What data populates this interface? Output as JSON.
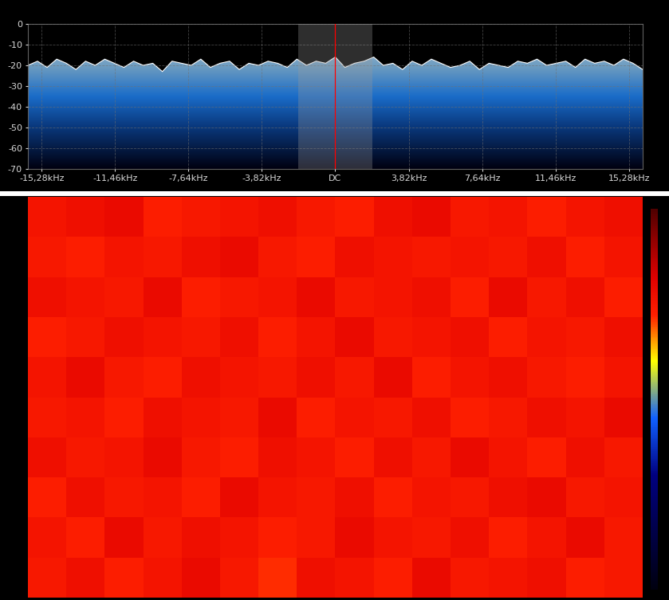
{
  "chart_data": [
    {
      "type": "line",
      "x": [
        -16,
        -15.5,
        -15,
        -14.5,
        -14,
        -13.5,
        -13,
        -12.5,
        -12,
        -11.5,
        -11,
        -10.5,
        -10,
        -9.5,
        -9,
        -8.5,
        -8,
        -7.5,
        -7,
        -6.5,
        -6,
        -5.5,
        -5,
        -4.5,
        -4,
        -3.5,
        -3,
        -2.5,
        -2,
        -1.5,
        -1,
        -0.5,
        0,
        0.5,
        1,
        1.5,
        2,
        2.5,
        3,
        3.5,
        4,
        4.5,
        5,
        5.5,
        6,
        6.5,
        7,
        7.5,
        8,
        8.5,
        9,
        9.5,
        10,
        10.5,
        11,
        11.5,
        12,
        12.5,
        13,
        13.5,
        14,
        14.5,
        15,
        15.5,
        16
      ],
      "series": [
        {
          "color": "#ffffff",
          "values": [
            -20,
            -18,
            -21,
            -17,
            -19,
            -22,
            -18,
            -20,
            -17,
            -19,
            -21,
            -18,
            -20,
            -19,
            -23,
            -18,
            -19,
            -20,
            -17,
            -21,
            -19,
            -18,
            -22,
            -19,
            -20,
            -18,
            -19,
            -21,
            -17,
            -20,
            -18,
            -19,
            -16,
            -21,
            -19,
            -18,
            -16,
            -20,
            -19,
            -22,
            -18,
            -20,
            -17,
            -19,
            -21,
            -20,
            -18,
            -22,
            -19,
            -20,
            -21,
            -18,
            -19,
            -17,
            -20,
            -19,
            -18,
            -21,
            -17,
            -19,
            -18,
            -20,
            -17,
            -19,
            -22
          ]
        }
      ],
      "xlim": [
        -16,
        16
      ],
      "xticks": [
        {
          "value": -15.28,
          "label": "-15,28kHz"
        },
        {
          "value": -11.46,
          "label": "-11,46kHz"
        },
        {
          "value": -7.64,
          "label": "-7,64kHz"
        },
        {
          "value": -3.82,
          "label": "-3,82kHz"
        },
        {
          "value": 0,
          "label": "DC"
        },
        {
          "value": 3.82,
          "label": "3,82kHz"
        },
        {
          "value": 7.64,
          "label": "7,64kHz"
        },
        {
          "value": 11.46,
          "label": "11,46kHz"
        },
        {
          "value": 15.28,
          "label": "15,28kHz"
        }
      ],
      "ylim": [
        -70,
        0
      ],
      "yticks": [
        -70,
        -60,
        -50,
        -40,
        -30,
        -20,
        -10,
        0
      ],
      "grid": true,
      "highlight_band": [
        -1.95,
        1.95
      ],
      "center_line": 0
    },
    {
      "type": "heatmap",
      "tick_labels": false,
      "colorbar_range": [
        -70,
        0
      ],
      "cells": [
        [
          -18,
          -16,
          -19,
          -17,
          -15,
          -18,
          -20,
          -16,
          -17,
          -19,
          -15,
          -18,
          -17,
          -16,
          -19,
          -18
        ],
        [
          -17,
          -19,
          -15,
          -18,
          -16,
          -17,
          -19,
          -18,
          -15,
          -17,
          -18,
          -16,
          -19,
          -17,
          -15,
          -18
        ],
        [
          -19,
          -16,
          -18,
          -17,
          -19,
          -15,
          -17,
          -18,
          -16,
          -19,
          -17,
          -18,
          -16,
          -15,
          -18,
          -17
        ],
        [
          -16,
          -18,
          -17,
          -15,
          -18,
          -19,
          -16,
          -17,
          -19,
          -16,
          -18,
          -15,
          -17,
          -19,
          -16,
          -18
        ],
        [
          -18,
          -17,
          -19,
          -16,
          -17,
          -18,
          -15,
          -19,
          -17,
          -18,
          -16,
          -19,
          -18,
          -16,
          -17,
          -15
        ],
        [
          -17,
          -15,
          -18,
          -19,
          -16,
          -17,
          -18,
          -16,
          -18,
          -15,
          -19,
          -17,
          -16,
          -18,
          -19,
          -17
        ],
        [
          -19,
          -18,
          -16,
          -17,
          -18,
          -16,
          -19,
          -17,
          -15,
          -18,
          -17,
          -16,
          -19,
          -17,
          -18,
          -16
        ],
        [
          -16,
          -17,
          -18,
          -15,
          -19,
          -18,
          -17,
          -15,
          -18,
          -17,
          -16,
          -19,
          -15,
          -18,
          -16,
          -19
        ],
        [
          -18,
          -19,
          -17,
          -18,
          -16,
          -15,
          -18,
          -19,
          -16,
          -17,
          -18,
          -17,
          -18,
          -16,
          -19,
          -17
        ],
        [
          -17,
          -16,
          -15,
          -19,
          -18,
          -17,
          -16,
          -18,
          -19,
          -16,
          -15,
          -18,
          -17,
          -19,
          -17,
          -16
        ]
      ]
    }
  ]
}
